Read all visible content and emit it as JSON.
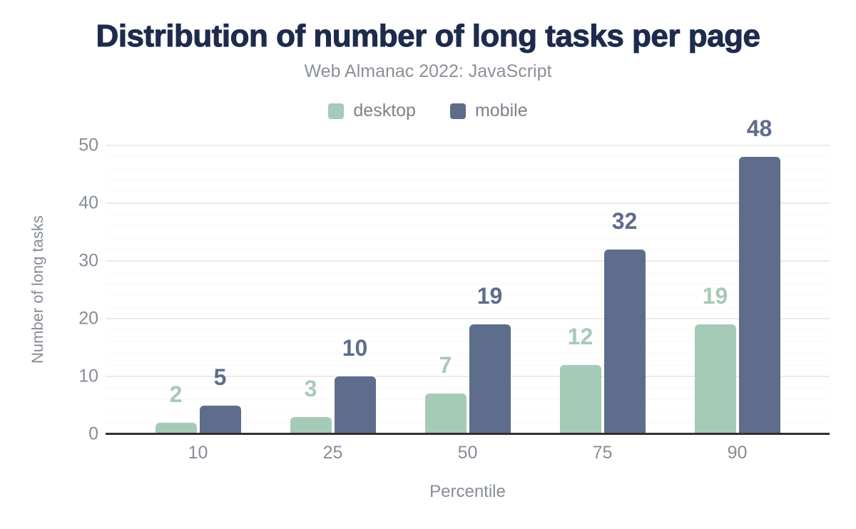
{
  "header": {
    "title": "Distribution of number of long tasks per page",
    "subtitle": "Web Almanac 2022: JavaScript"
  },
  "chart_data": {
    "type": "bar",
    "title": "Distribution of number of long tasks per page",
    "subtitle": "Web Almanac 2022: JavaScript",
    "categories": [
      "10",
      "25",
      "50",
      "75",
      "90"
    ],
    "series": [
      {
        "name": "desktop",
        "color": "#a6cab8",
        "values": [
          2,
          3,
          7,
          12,
          19
        ]
      },
      {
        "name": "mobile",
        "color": "#5e6d8c",
        "values": [
          5,
          10,
          19,
          32,
          48
        ]
      }
    ],
    "xlabel": "Percentile",
    "ylabel": "Number of long tasks",
    "ylim": [
      0,
      50
    ],
    "yticks": [
      0,
      10,
      20,
      30,
      40,
      50
    ],
    "major_step": 10,
    "minor_step": 2,
    "grid": "on",
    "legend_position": "top",
    "bar_label_style": "bold, colored same as series",
    "colors": {
      "title_text": "#1e2b4d",
      "muted_text": "#878d95",
      "legend_text": "#7b838b",
      "axis_line": "#313131",
      "grid_major": "#ebebeb",
      "grid_minor": "#f7f7f7",
      "background": "#ffffff"
    }
  }
}
